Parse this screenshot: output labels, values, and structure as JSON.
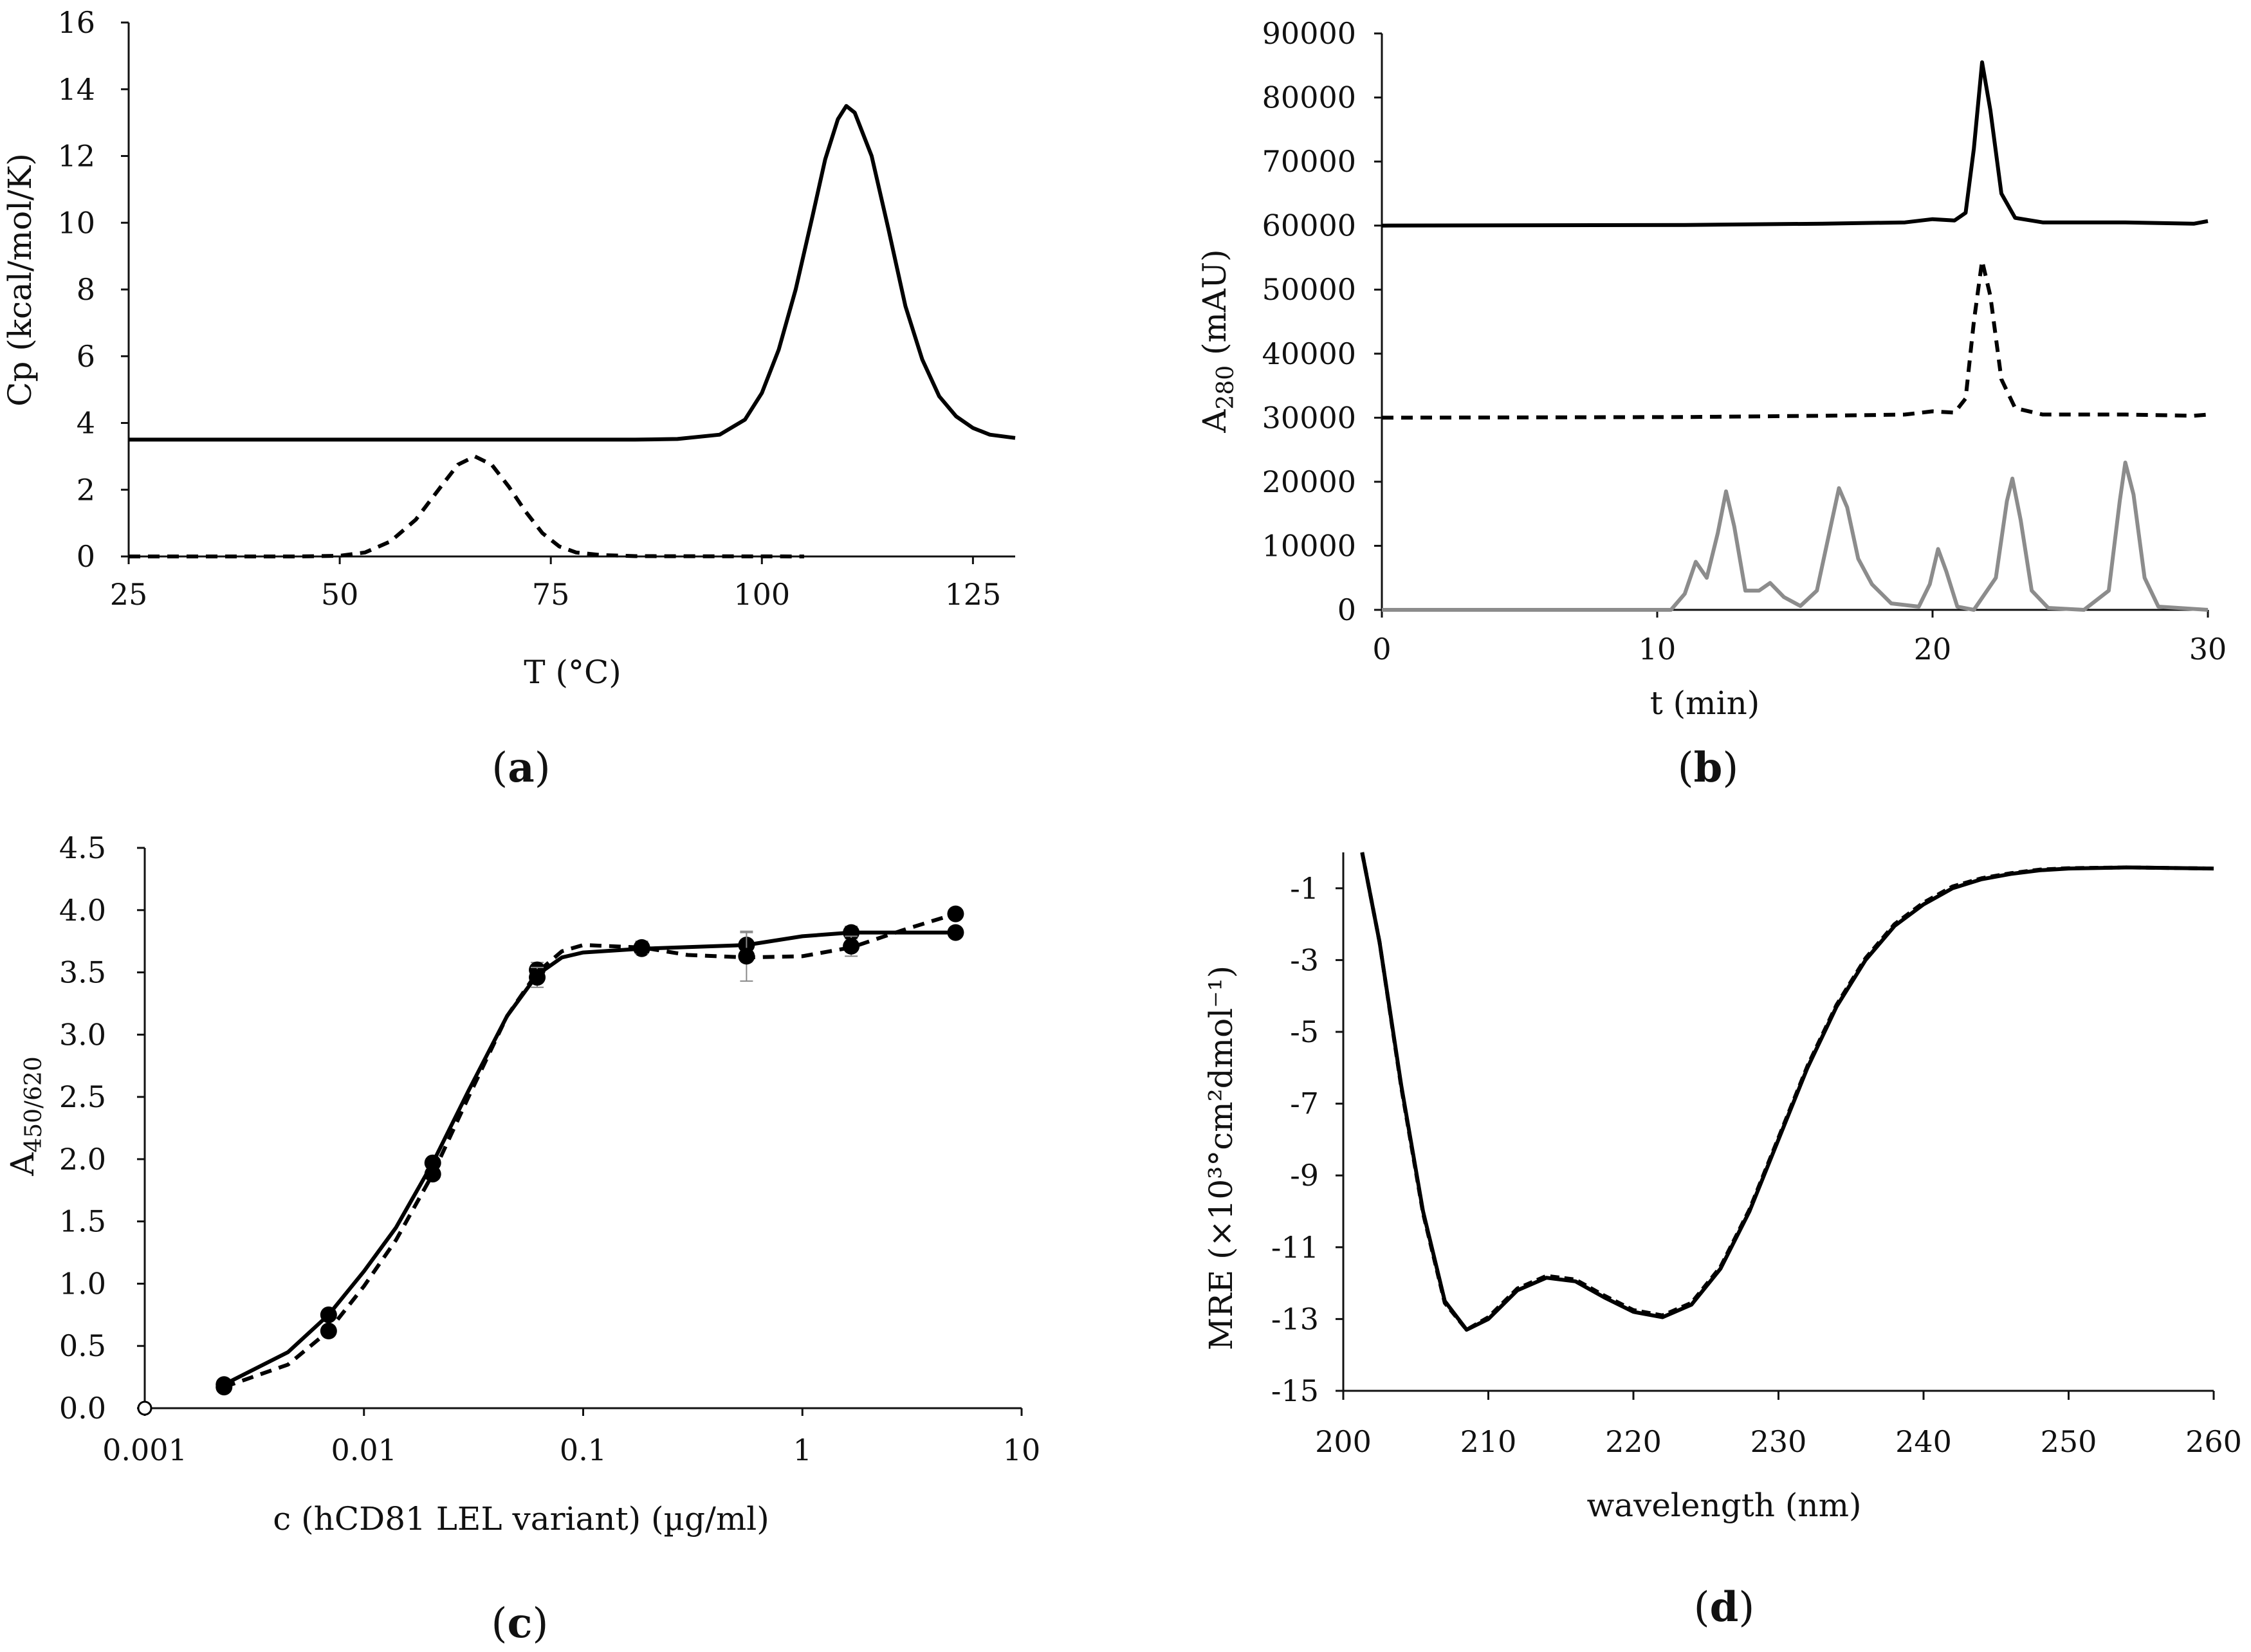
{
  "colors": {
    "axis": "#111111",
    "black_series": "#000000",
    "gray_series": "#8c8c8c",
    "marker": "#000000"
  },
  "chart_data": [
    {
      "panel": "a",
      "type": "line",
      "panel_label": {
        "open": "(",
        "letter": "a",
        "close": ")"
      },
      "xlabel": "T (°C)",
      "ylabel": "Cp (kcal/mol/K)",
      "xlim": [
        25,
        130
      ],
      "ylim": [
        0,
        16
      ],
      "x_ticks": [
        25,
        50,
        75,
        100,
        125
      ],
      "y_ticks": [
        0,
        2,
        4,
        6,
        8,
        10,
        12,
        14,
        16
      ],
      "series": [
        {
          "name": "solid",
          "style": "solid",
          "color": "#000000",
          "points": [
            [
              25,
              3.5
            ],
            [
              60,
              3.5
            ],
            [
              85,
              3.5
            ],
            [
              90,
              3.52
            ],
            [
              95,
              3.65
            ],
            [
              98,
              4.1
            ],
            [
              100,
              4.9
            ],
            [
              102,
              6.2
            ],
            [
              104,
              8.0
            ],
            [
              106,
              10.2
            ],
            [
              107.5,
              11.9
            ],
            [
              109,
              13.1
            ],
            [
              110,
              13.5
            ],
            [
              111,
              13.3
            ],
            [
              113,
              12.0
            ],
            [
              115,
              9.8
            ],
            [
              117,
              7.5
            ],
            [
              119,
              5.9
            ],
            [
              121,
              4.8
            ],
            [
              123,
              4.2
            ],
            [
              125,
              3.85
            ],
            [
              127,
              3.65
            ],
            [
              130,
              3.55
            ]
          ]
        },
        {
          "name": "dashed",
          "style": "dashed",
          "color": "#000000",
          "points": [
            [
              25,
              0
            ],
            [
              45,
              0
            ],
            [
              50,
              0.02
            ],
            [
              53,
              0.12
            ],
            [
              56,
              0.45
            ],
            [
              59,
              1.1
            ],
            [
              62,
              2.1
            ],
            [
              64,
              2.75
            ],
            [
              66,
              3.0
            ],
            [
              68,
              2.75
            ],
            [
              70,
              2.1
            ],
            [
              72,
              1.35
            ],
            [
              74,
              0.7
            ],
            [
              76,
              0.3
            ],
            [
              78,
              0.12
            ],
            [
              81,
              0.04
            ],
            [
              85,
              0.01
            ],
            [
              105,
              0
            ]
          ]
        }
      ]
    },
    {
      "panel": "b",
      "type": "line",
      "panel_label": {
        "open": "(",
        "letter": "b",
        "close": ")"
      },
      "xlabel": "t (min)",
      "ylabel_main": "A",
      "ylabel_sub": "280",
      "ylabel_rest": " (mAU)",
      "xlim": [
        0,
        30
      ],
      "ylim": [
        0,
        90000
      ],
      "x_ticks": [
        0,
        10,
        20,
        30
      ],
      "y_ticks": [
        0,
        10000,
        20000,
        30000,
        40000,
        50000,
        60000,
        70000,
        80000,
        90000
      ],
      "series": [
        {
          "name": "top-solid",
          "style": "solid",
          "color": "#000000",
          "points": [
            [
              0,
              60000
            ],
            [
              11,
              60100
            ],
            [
              16,
              60300
            ],
            [
              19,
              60500
            ],
            [
              20,
              61000
            ],
            [
              20.8,
              60800
            ],
            [
              21.2,
              62000
            ],
            [
              21.5,
              72000
            ],
            [
              21.8,
              85500
            ],
            [
              22.1,
              78000
            ],
            [
              22.5,
              65000
            ],
            [
              23,
              61200
            ],
            [
              24,
              60500
            ],
            [
              27,
              60500
            ],
            [
              29.5,
              60300
            ],
            [
              30,
              60700
            ]
          ]
        },
        {
          "name": "middle-dashed",
          "style": "dashed",
          "color": "#000000",
          "points": [
            [
              0,
              30000
            ],
            [
              11,
              30100
            ],
            [
              16,
              30300
            ],
            [
              19,
              30500
            ],
            [
              20,
              31000
            ],
            [
              20.8,
              30800
            ],
            [
              21.2,
              33000
            ],
            [
              21.5,
              45000
            ],
            [
              21.8,
              54500
            ],
            [
              22.1,
              49000
            ],
            [
              22.5,
              36000
            ],
            [
              23,
              31500
            ],
            [
              24,
              30500
            ],
            [
              27,
              30500
            ],
            [
              29.5,
              30300
            ],
            [
              30,
              30500
            ]
          ]
        },
        {
          "name": "bottom-gray",
          "style": "solid",
          "color": "#8c8c8c",
          "points": [
            [
              0,
              0
            ],
            [
              10.5,
              0
            ],
            [
              11,
              2500
            ],
            [
              11.4,
              7500
            ],
            [
              11.8,
              5000
            ],
            [
              12.2,
              12000
            ],
            [
              12.5,
              18500
            ],
            [
              12.8,
              13000
            ],
            [
              13.2,
              3000
            ],
            [
              13.7,
              3000
            ],
            [
              14.1,
              4200
            ],
            [
              14.6,
              2000
            ],
            [
              15.2,
              600
            ],
            [
              15.8,
              3000
            ],
            [
              16.3,
              13000
            ],
            [
              16.6,
              19000
            ],
            [
              16.9,
              16000
            ],
            [
              17.3,
              8000
            ],
            [
              17.8,
              4000
            ],
            [
              18.5,
              1000
            ],
            [
              19.5,
              500
            ],
            [
              19.9,
              4000
            ],
            [
              20.2,
              9500
            ],
            [
              20.5,
              6000
            ],
            [
              20.9,
              500
            ],
            [
              21.5,
              0
            ],
            [
              22.3,
              5000
            ],
            [
              22.7,
              17000
            ],
            [
              22.9,
              20500
            ],
            [
              23.2,
              14000
            ],
            [
              23.6,
              3000
            ],
            [
              24.2,
              300
            ],
            [
              25.5,
              0
            ],
            [
              26.4,
              3000
            ],
            [
              26.8,
              17000
            ],
            [
              27,
              23000
            ],
            [
              27.3,
              18000
            ],
            [
              27.7,
              5000
            ],
            [
              28.2,
              500
            ],
            [
              30,
              0
            ]
          ]
        }
      ]
    },
    {
      "panel": "c",
      "type": "scatter",
      "panel_label": {
        "open": "(",
        "letter": "c",
        "close": ")"
      },
      "xlabel": "c (hCD81 LEL variant) (µg/ml)",
      "ylabel_main": "A",
      "ylabel_sub": "450/620",
      "x_scale": "log",
      "xlim": [
        0.001,
        10
      ],
      "ylim": [
        0,
        4.5
      ],
      "x_ticks": [
        0.001,
        0.01,
        0.1,
        1,
        10
      ],
      "x_tick_labels": [
        "0.001",
        "0.01",
        "0.1",
        "1",
        "10"
      ],
      "y_ticks": [
        0,
        0.5,
        1,
        1.5,
        2,
        2.5,
        3,
        3.5,
        4,
        4.5
      ],
      "y_tick_labels": [
        "0.0",
        "0.5",
        "1.0",
        "1.5",
        "2.0",
        "2.5",
        "3.0",
        "3.5",
        "4.0",
        "4.5"
      ],
      "open_marker": {
        "x": 0.001,
        "y": 0
      },
      "series": [
        {
          "name": "solid",
          "style": "solid",
          "color": "#000000",
          "x": [
            0.0023,
            0.0069,
            0.0206,
            0.0617,
            0.185,
            0.556,
            1.67,
            5.0
          ],
          "y": [
            0.19,
            0.75,
            1.97,
            3.52,
            3.69,
            3.72,
            3.82,
            3.82
          ],
          "err": [
            0.02,
            0.03,
            0.03,
            0.06,
            0.04,
            0.1,
            0.05,
            0.03
          ],
          "curve": [
            [
              0.0023,
              0.19
            ],
            [
              0.0045,
              0.45
            ],
            [
              0.0069,
              0.75
            ],
            [
              0.01,
              1.1
            ],
            [
              0.014,
              1.45
            ],
            [
              0.0206,
              1.97
            ],
            [
              0.03,
              2.55
            ],
            [
              0.045,
              3.15
            ],
            [
              0.0617,
              3.48
            ],
            [
              0.08,
              3.62
            ],
            [
              0.1,
              3.66
            ],
            [
              0.185,
              3.69
            ],
            [
              0.556,
              3.72
            ],
            [
              1.0,
              3.79
            ],
            [
              1.67,
              3.82
            ],
            [
              5.0,
              3.82
            ]
          ]
        },
        {
          "name": "dashed",
          "style": "dashed",
          "color": "#000000",
          "x": [
            0.0023,
            0.0069,
            0.0206,
            0.0617,
            0.185,
            0.556,
            1.67,
            5.0
          ],
          "y": [
            0.17,
            0.62,
            1.88,
            3.46,
            3.7,
            3.63,
            3.71,
            3.97
          ],
          "err": [
            0.02,
            0.03,
            0.04,
            0.08,
            0.05,
            0.2,
            0.08,
            0.03
          ],
          "curve": [
            [
              0.0023,
              0.17
            ],
            [
              0.0045,
              0.35
            ],
            [
              0.0069,
              0.62
            ],
            [
              0.01,
              0.98
            ],
            [
              0.014,
              1.35
            ],
            [
              0.0206,
              1.88
            ],
            [
              0.03,
              2.5
            ],
            [
              0.045,
              3.15
            ],
            [
              0.0617,
              3.5
            ],
            [
              0.08,
              3.67
            ],
            [
              0.1,
              3.72
            ],
            [
              0.185,
              3.7
            ],
            [
              0.3,
              3.64
            ],
            [
              0.556,
              3.62
            ],
            [
              1.0,
              3.63
            ],
            [
              1.67,
              3.7
            ],
            [
              3.0,
              3.85
            ],
            [
              5.0,
              3.97
            ]
          ]
        }
      ]
    },
    {
      "panel": "d",
      "type": "line",
      "panel_label": {
        "open": "(",
        "letter": "d",
        "close": ")"
      },
      "xlabel": "wavelength (nm)",
      "ylabel": "MRE (×10³°cm²dmol⁻¹)",
      "xlim": [
        200,
        260
      ],
      "ylim": [
        -15,
        0
      ],
      "x_ticks": [
        200,
        210,
        220,
        230,
        240,
        250,
        260
      ],
      "y_ticks": [
        -1,
        -3,
        -5,
        -7,
        -9,
        -11,
        -13,
        -15
      ],
      "series": [
        {
          "name": "solid",
          "style": "solid",
          "color": "#000000",
          "points": [
            [
              201.3,
              0
            ],
            [
              202.5,
              -2.5
            ],
            [
              204,
              -6.5
            ],
            [
              205.5,
              -10
            ],
            [
              207,
              -12.5
            ],
            [
              208.5,
              -13.3
            ],
            [
              210,
              -13
            ],
            [
              212,
              -12.2
            ],
            [
              214,
              -11.85
            ],
            [
              216,
              -11.95
            ],
            [
              218,
              -12.4
            ],
            [
              220,
              -12.8
            ],
            [
              222,
              -12.95
            ],
            [
              224,
              -12.6
            ],
            [
              226,
              -11.6
            ],
            [
              228,
              -10
            ],
            [
              230,
              -8
            ],
            [
              232,
              -6
            ],
            [
              234,
              -4.3
            ],
            [
              236,
              -3
            ],
            [
              238,
              -2.05
            ],
            [
              240,
              -1.45
            ],
            [
              242,
              -1.0
            ],
            [
              244,
              -0.75
            ],
            [
              246,
              -0.6
            ],
            [
              248,
              -0.5
            ],
            [
              250,
              -0.45
            ],
            [
              254,
              -0.42
            ],
            [
              260,
              -0.45
            ]
          ]
        },
        {
          "name": "dashed",
          "style": "dashed",
          "color": "#000000",
          "points": [
            [
              201.3,
              0
            ],
            [
              202.5,
              -2.5
            ],
            [
              204,
              -6.55
            ],
            [
              205.5,
              -10.05
            ],
            [
              207,
              -12.55
            ],
            [
              208.5,
              -13.3
            ],
            [
              210,
              -12.95
            ],
            [
              212,
              -12.15
            ],
            [
              214,
              -11.8
            ],
            [
              216,
              -11.9
            ],
            [
              218,
              -12.35
            ],
            [
              220,
              -12.75
            ],
            [
              222,
              -12.9
            ],
            [
              224,
              -12.55
            ],
            [
              226,
              -11.55
            ],
            [
              228,
              -9.95
            ],
            [
              230,
              -7.95
            ],
            [
              232,
              -5.95
            ],
            [
              234,
              -4.25
            ],
            [
              236,
              -2.95
            ],
            [
              238,
              -2.0
            ],
            [
              240,
              -1.4
            ],
            [
              242,
              -0.95
            ],
            [
              244,
              -0.72
            ],
            [
              246,
              -0.58
            ],
            [
              248,
              -0.48
            ],
            [
              250,
              -0.44
            ],
            [
              254,
              -0.42
            ],
            [
              260,
              -0.45
            ]
          ]
        }
      ]
    }
  ]
}
